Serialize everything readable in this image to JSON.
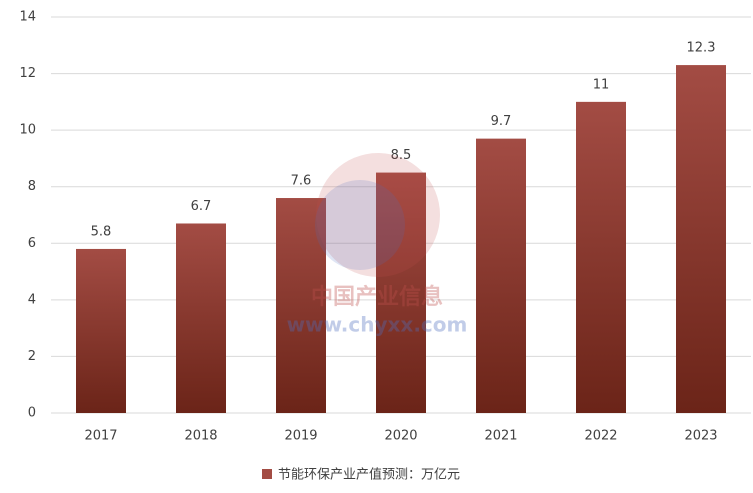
{
  "chart_data": {
    "type": "bar",
    "categories": [
      "2017",
      "2018",
      "2019",
      "2020",
      "2021",
      "2022",
      "2023"
    ],
    "series": [
      {
        "name": "节能环保产业产值预测：万亿元",
        "color": "#a34c44",
        "values": [
          5.8,
          6.7,
          7.6,
          8.5,
          9.7,
          11,
          12.3
        ]
      }
    ],
    "ylim": [
      0,
      14
    ],
    "yticks": [
      0,
      2,
      4,
      6,
      8,
      10,
      12,
      14
    ],
    "grid": true,
    "legend": "bottom",
    "watermark": [
      "中国产业信息",
      "www.chyxx.com"
    ]
  }
}
